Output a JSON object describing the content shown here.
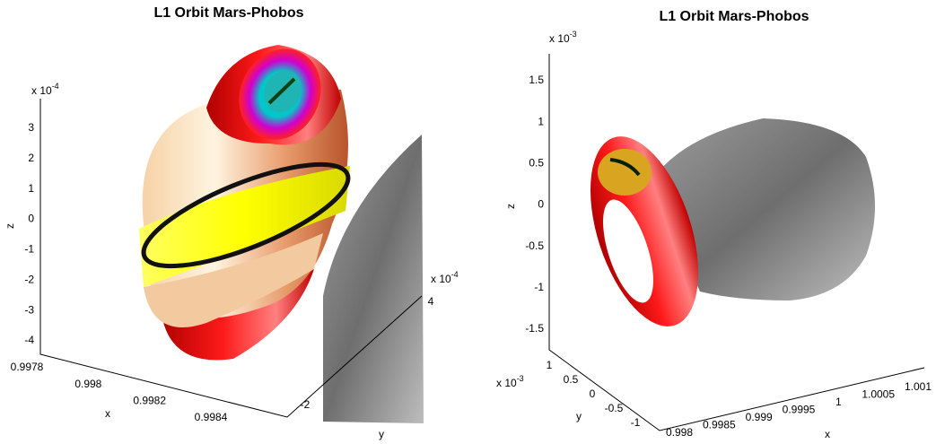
{
  "chart_data": [
    {
      "type": "surface3d",
      "title": "L1 Orbit Mars-Phobos",
      "xlabel": "x",
      "ylabel": "y",
      "zlabel": "z",
      "zexponent": {
        "base": "x 10",
        "power": "-4"
      },
      "yexponent": {
        "base": "x 10",
        "power": "-4"
      },
      "xlim": [
        0.9978,
        0.9984
      ],
      "xticks": [
        0.9978,
        0.998,
        0.9982,
        0.9984
      ],
      "ylim": [
        -2,
        4
      ],
      "yticks": [
        -2,
        4
      ],
      "zlim": [
        -4,
        3
      ],
      "zticks": [
        3,
        2,
        1,
        0,
        -1,
        -2,
        -3,
        -4
      ]
    },
    {
      "type": "surface3d",
      "title": "L1 Orbit Mars-Phobos",
      "xlabel": "x",
      "ylabel": "y",
      "zlabel": "z",
      "zexponent": {
        "base": "x 10",
        "power": "-3"
      },
      "yexponent": {
        "base": "x 10",
        "power": "-3"
      },
      "xlim": [
        0.998,
        1.001
      ],
      "xticks": [
        0.998,
        0.9985,
        0.999,
        0.9995,
        1,
        1.0005,
        1.001
      ],
      "ylim": [
        -1,
        1
      ],
      "yticks": [
        1,
        0.5,
        0,
        -0.5,
        -1
      ],
      "zlim": [
        -1.5,
        1.5
      ],
      "zticks": [
        1.5,
        1,
        0.5,
        0,
        -0.5,
        -1,
        -1.5
      ]
    }
  ]
}
